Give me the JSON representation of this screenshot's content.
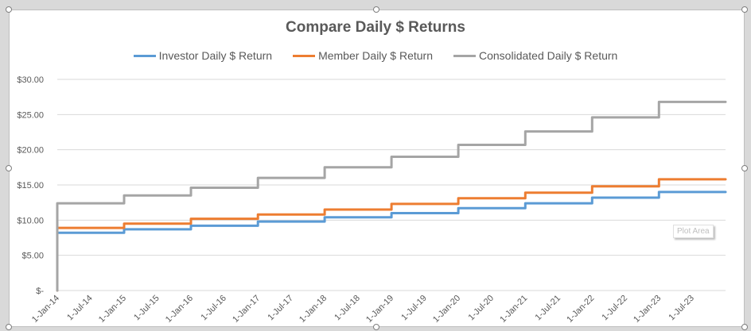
{
  "chart_data": {
    "type": "line",
    "title": "Compare Daily $ Returns",
    "xlabel": "",
    "ylabel": "",
    "x_tick_labels": [
      "1-Jan-14",
      "1-Jul-14",
      "1-Jan-15",
      "1-Jul-15",
      "1-Jan-16",
      "1-Jul-16",
      "1-Jan-17",
      "1-Jul-17",
      "1-Jan-18",
      "1-Jul-18",
      "1-Jan-19",
      "1-Jul-19",
      "1-Jan-20",
      "1-Jul-20",
      "1-Jan-21",
      "1-Jul-21",
      "1-Jan-22",
      "1-Jul-22",
      "1-Jan-23",
      "1-Jul-23"
    ],
    "y_tick_labels": [
      "$-",
      "$5.00",
      "$10.00",
      "$15.00",
      "$20.00",
      "$25.00",
      "$30.00"
    ],
    "ylim": [
      0,
      30
    ],
    "x_range": [
      "1-Jan-14",
      "31-Dec-23"
    ],
    "grid": true,
    "legend_position": "top",
    "series": [
      {
        "name": "Investor Daily $ Return",
        "color": "#5b9bd5",
        "steps": [
          {
            "from": "1-Jan-14",
            "value": 8.2
          },
          {
            "from": "1-Jan-15",
            "value": 8.7
          },
          {
            "from": "1-Jan-16",
            "value": 9.2
          },
          {
            "from": "1-Jan-17",
            "value": 9.8
          },
          {
            "from": "1-Jan-18",
            "value": 10.4
          },
          {
            "from": "1-Jan-19",
            "value": 11.0
          },
          {
            "from": "1-Jan-20",
            "value": 11.7
          },
          {
            "from": "1-Jan-21",
            "value": 12.4
          },
          {
            "from": "1-Jan-22",
            "value": 13.2
          },
          {
            "from": "1-Jan-23",
            "value": 14.0
          }
        ]
      },
      {
        "name": "Member Daily $ Return",
        "color": "#ed7d31",
        "steps": [
          {
            "from": "1-Jan-14",
            "value": 8.9
          },
          {
            "from": "1-Jan-15",
            "value": 9.5
          },
          {
            "from": "1-Jan-16",
            "value": 10.2
          },
          {
            "from": "1-Jan-17",
            "value": 10.8
          },
          {
            "from": "1-Jan-18",
            "value": 11.5
          },
          {
            "from": "1-Jan-19",
            "value": 12.3
          },
          {
            "from": "1-Jan-20",
            "value": 13.1
          },
          {
            "from": "1-Jan-21",
            "value": 13.9
          },
          {
            "from": "1-Jan-22",
            "value": 14.8
          },
          {
            "from": "1-Jan-23",
            "value": 15.8
          }
        ]
      },
      {
        "name": "Consolidated Daily $ Return",
        "color": "#a5a5a5",
        "steps": [
          {
            "from": "1-Jan-14",
            "value": 12.4
          },
          {
            "from": "1-Jan-15",
            "value": 13.5
          },
          {
            "from": "1-Jan-16",
            "value": 14.6
          },
          {
            "from": "1-Jan-17",
            "value": 16.0
          },
          {
            "from": "1-Jan-18",
            "value": 17.5
          },
          {
            "from": "1-Jan-19",
            "value": 19.0
          },
          {
            "from": "1-Jan-20",
            "value": 20.7
          },
          {
            "from": "1-Jan-21",
            "value": 22.6
          },
          {
            "from": "1-Jan-22",
            "value": 24.6
          },
          {
            "from": "1-Jan-23",
            "value": 26.8
          }
        ]
      }
    ]
  },
  "tooltip": {
    "text": "Plot Area"
  },
  "colors": {
    "gridline": "#d9d9d9",
    "axis_text": "#595959",
    "title_text": "#595959"
  }
}
